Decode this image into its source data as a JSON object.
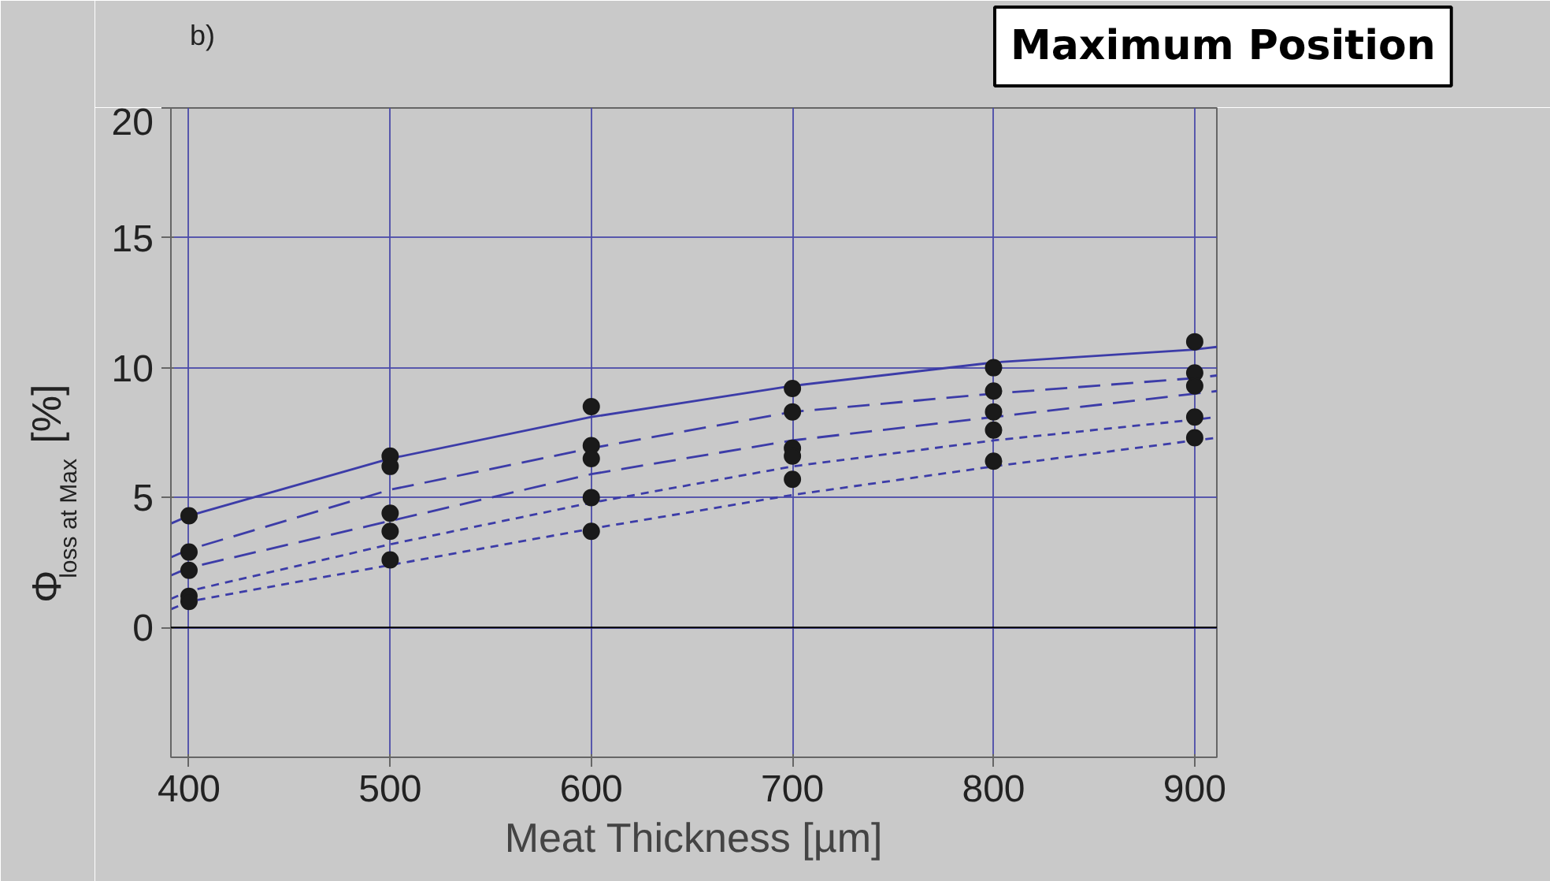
{
  "chart_data": {
    "type": "line",
    "title": "Maximum Position",
    "annotations": [
      "b)"
    ],
    "xlabel": "Meat Thickness [µm]",
    "ylabel": "Φ$_{loss at Max}$ [%]",
    "xlim": [
      391,
      911
    ],
    "ylim": [
      -5,
      20
    ],
    "xticks": [
      400,
      500,
      600,
      700,
      800,
      900
    ],
    "yticks": [
      0,
      5,
      10,
      15,
      20
    ],
    "grid": true,
    "ref_lines": [
      {
        "axis": "y",
        "value": 0,
        "color": "#000000"
      }
    ],
    "series": [
      {
        "line_style": "solid",
        "color": "#3c3ca8",
        "x": [
          391,
          400,
          500,
          600,
          700,
          800,
          900,
          911
        ],
        "values": [
          4.0,
          4.3,
          6.5,
          8.1,
          9.3,
          10.2,
          10.7,
          10.8
        ]
      },
      {
        "line_style": "dashed",
        "color": "#3c3ca8",
        "x": [
          391,
          400,
          500,
          600,
          700,
          800,
          900,
          911
        ],
        "values": [
          2.7,
          3.0,
          5.3,
          6.9,
          8.3,
          9.0,
          9.6,
          9.7
        ]
      },
      {
        "line_style": "dashed",
        "color": "#3c3ca8",
        "x": [
          391,
          400,
          500,
          600,
          700,
          800,
          900,
          911
        ],
        "values": [
          2.0,
          2.3,
          4.1,
          5.9,
          7.2,
          8.1,
          9.0,
          9.1
        ]
      },
      {
        "line_style": "dotted",
        "color": "#3c3ca8",
        "x": [
          391,
          400,
          500,
          600,
          700,
          800,
          900,
          911
        ],
        "values": [
          1.1,
          1.4,
          3.2,
          4.8,
          6.2,
          7.2,
          8.0,
          8.1
        ]
      },
      {
        "line_style": "dotted",
        "color": "#3c3ca8",
        "x": [
          391,
          400,
          500,
          600,
          700,
          800,
          900,
          911
        ],
        "values": [
          0.7,
          1.0,
          2.4,
          3.8,
          5.1,
          6.2,
          7.2,
          7.3
        ]
      },
      {
        "type": "scatter",
        "marker": "circle",
        "color": "#1a1a1a",
        "x": [
          400,
          400,
          400,
          400,
          400,
          500,
          500,
          500,
          500,
          500,
          600,
          600,
          600,
          600,
          600,
          700,
          700,
          700,
          700,
          700,
          800,
          800,
          800,
          800,
          800,
          900,
          900,
          900,
          900,
          900
        ],
        "values": [
          4.3,
          2.9,
          2.2,
          1.2,
          1.0,
          6.6,
          6.2,
          4.4,
          3.7,
          2.6,
          8.5,
          7.0,
          6.5,
          5.0,
          3.7,
          9.2,
          8.3,
          6.9,
          6.6,
          5.7,
          10.0,
          9.1,
          8.3,
          7.6,
          6.4,
          11.0,
          9.8,
          9.3,
          8.1,
          7.3
        ]
      }
    ]
  }
}
